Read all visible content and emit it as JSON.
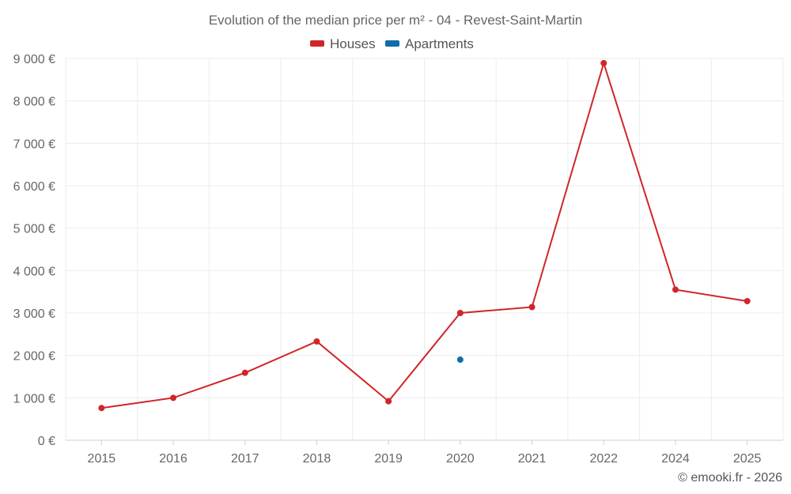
{
  "chart_data": {
    "type": "line",
    "title": "Evolution of the median price per m² - 04 - Revest-Saint-Martin",
    "categories": [
      "2015",
      "2016",
      "2017",
      "2018",
      "2019",
      "2020",
      "2021",
      "2022",
      "2024",
      "2025"
    ],
    "y_ticks": [
      "0 €",
      "1 000 €",
      "2 000 €",
      "3 000 €",
      "4 000 €",
      "5 000 €",
      "6 000 €",
      "7 000 €",
      "8 000 €",
      "9 000 €"
    ],
    "ylim": [
      0,
      9000
    ],
    "y_step": 1000,
    "grid": true,
    "legend_position": "top-center",
    "series": [
      {
        "name": "Houses",
        "color": "#d0262a",
        "values": [
          760,
          1000,
          1590,
          2330,
          920,
          3000,
          3140,
          8890,
          3550,
          3280
        ]
      },
      {
        "name": "Apartments",
        "color": "#0f6ea8",
        "values": [
          null,
          null,
          null,
          null,
          null,
          1900,
          null,
          null,
          null,
          null
        ]
      }
    ]
  },
  "credit": "© emooki.fr - 2026"
}
